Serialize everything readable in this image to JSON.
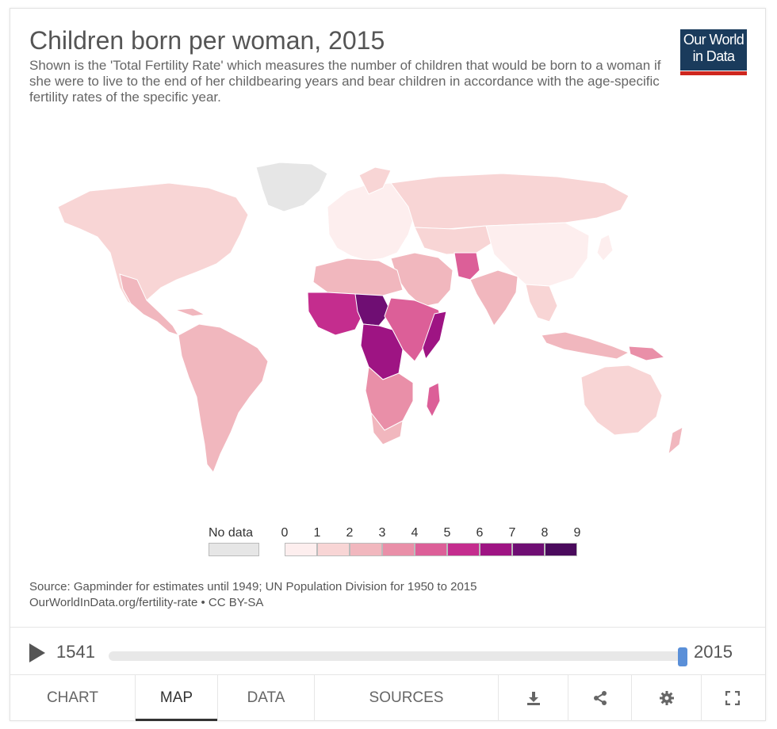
{
  "header": {
    "title": "Children born per woman, 2015",
    "subtitle": "Shown is the 'Total Fertility Rate' which measures the number of children that would be born to a woman if she were to live to the end of her childbearing years and bear children in accordance with the age-specific fertility rates of the specific year."
  },
  "logo": {
    "line1": "Our World",
    "line2": "in Data"
  },
  "legend": {
    "no_data_label": "No data",
    "ticks": [
      "0",
      "1",
      "2",
      "3",
      "4",
      "5",
      "6",
      "7",
      "8",
      "9"
    ],
    "colors": [
      "#fdeeee",
      "#f8d5d5",
      "#f1b7be",
      "#e98fa8",
      "#dc5f98",
      "#c42d8e",
      "#9e1483",
      "#6f0e73",
      "#4a0a5c"
    ],
    "no_data_color": "#e6e6e6"
  },
  "source": {
    "line1": "Source: Gapminder for estimates until 1949; UN Population Division for 1950 to 2015",
    "line2": "OurWorldInData.org/fertility-rate • CC BY-SA"
  },
  "timeline": {
    "start_year": "1541",
    "end_year": "2015",
    "position": 1.0
  },
  "tabs": [
    {
      "label": "CHART"
    },
    {
      "label": "MAP"
    },
    {
      "label": "DATA"
    },
    {
      "label": "SOURCES"
    }
  ],
  "icons": [
    "download-icon",
    "share-icon",
    "settings-icon",
    "fullscreen-icon"
  ]
}
